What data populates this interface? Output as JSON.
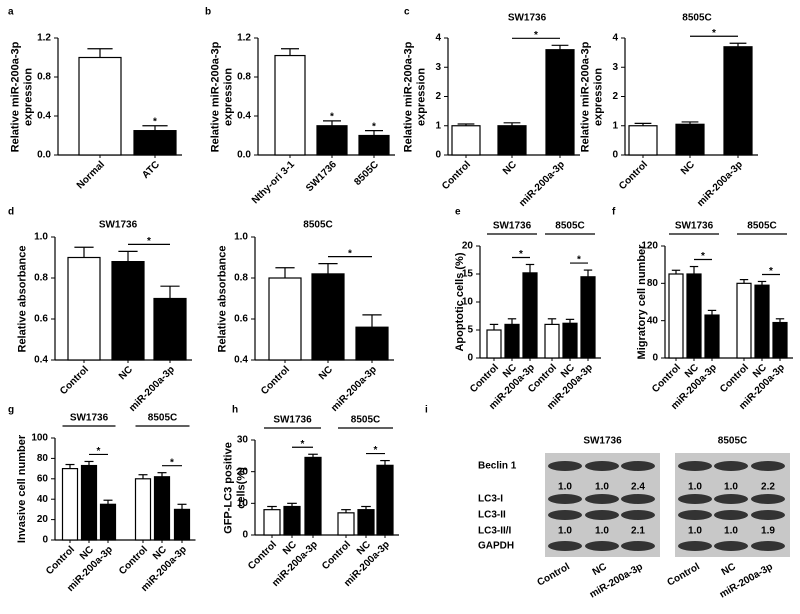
{
  "chart_data": [
    {
      "type": "bar",
      "panel": "a",
      "ylabel": "Relative miR-200a-3p expression",
      "categories": [
        "Normal",
        "ATC"
      ],
      "colors": [
        "#ffffff",
        "#000000"
      ],
      "values": [
        1.0,
        0.25
      ],
      "errors": [
        0.09,
        0.05
      ],
      "annotations": [
        null,
        "*"
      ],
      "bracket": false,
      "ylim": [
        0,
        1.2
      ],
      "yticks": [
        {
          "value": 0,
          "label": "0.0"
        },
        0.4,
        0.8,
        1.2
      ]
    },
    {
      "type": "bar",
      "panel": "b",
      "ylabel": "Relative miR-200a-3p expression",
      "categories": [
        "Nthy-ori 3-1",
        "SW1736",
        "8505C"
      ],
      "colors": [
        "#ffffff",
        "#000000",
        "#000000"
      ],
      "values": [
        1.02,
        0.3,
        0.2
      ],
      "errors": [
        0.07,
        0.05,
        0.05
      ],
      "annotations": [
        null,
        "*",
        "*"
      ],
      "bracket": false,
      "ylim": [
        0,
        1.2
      ],
      "yticks": [
        {
          "value": 0,
          "label": "0.0"
        },
        0.4,
        0.8,
        1.2
      ]
    },
    {
      "type": "bar",
      "panel": "c",
      "title": "SW1736",
      "ylabel": "Relative miR-200a-3p expression",
      "categories": [
        "Control",
        "NC",
        "miR-200a-3p"
      ],
      "colors": [
        "#ffffff",
        "#000000",
        "#000000"
      ],
      "values": [
        1.0,
        1.0,
        3.6
      ],
      "errors": [
        0.06,
        0.1,
        0.15
      ],
      "annotations": [
        null,
        null,
        "*"
      ],
      "bracket": true,
      "ylim": [
        0,
        4
      ],
      "yticks": [
        0,
        1,
        2,
        3,
        4
      ]
    },
    {
      "type": "bar",
      "title": "8505C",
      "ylabel": "Relative miR-200a-3p expression",
      "categories": [
        "Control",
        "NC",
        "miR-200a-3p"
      ],
      "colors": [
        "#ffffff",
        "#000000",
        "#000000"
      ],
      "values": [
        1.0,
        1.05,
        3.7
      ],
      "errors": [
        0.08,
        0.08,
        0.12
      ],
      "annotations": [
        null,
        null,
        "*"
      ],
      "bracket": true,
      "ylim": [
        0,
        4
      ],
      "yticks": [
        0,
        1,
        2,
        3,
        4
      ]
    },
    {
      "type": "bar",
      "panel": "d",
      "title": "SW1736",
      "ylabel": "Relative absorbance",
      "categories": [
        "Control",
        "NC",
        "miR-200a-3p"
      ],
      "colors": [
        "#ffffff",
        "#000000",
        "#000000"
      ],
      "values": [
        0.9,
        0.88,
        0.7
      ],
      "errors": [
        0.05,
        0.05,
        0.06
      ],
      "annotations": [
        null,
        null,
        "*"
      ],
      "bracket": true,
      "ylim": [
        0.4,
        1.0
      ],
      "yticks": [
        0.4,
        0.6,
        0.8,
        {
          "value": 1,
          "label": "1.0"
        }
      ]
    },
    {
      "type": "bar",
      "title": "8505C",
      "ylabel": "Relative absorbance",
      "categories": [
        "Control",
        "NC",
        "miR-200a-3p"
      ],
      "colors": [
        "#ffffff",
        "#000000",
        "#000000"
      ],
      "values": [
        0.8,
        0.82,
        0.56
      ],
      "errors": [
        0.05,
        0.05,
        0.06
      ],
      "annotations": [
        null,
        null,
        "*"
      ],
      "bracket": true,
      "ylim": [
        0.4,
        1.0
      ],
      "yticks": [
        0.4,
        0.6,
        0.8,
        {
          "value": 1,
          "label": "1.0"
        }
      ]
    },
    {
      "type": "bar",
      "panel": "e",
      "ylabel": "Apoptotic cells (%)",
      "categories": [
        "Control",
        "NC",
        "miR-200a-3p"
      ],
      "colors": [
        "#ffffff",
        "#000000",
        "#000000"
      ],
      "bracket": true,
      "ylim": [
        0,
        20
      ],
      "yticks": [
        0,
        5,
        10,
        15,
        20
      ],
      "groups": [
        {
          "name": "SW1736",
          "values": [
            5,
            6,
            15.2
          ],
          "errors": [
            1,
            1,
            1.5
          ],
          "annotations": [
            null,
            null,
            "*"
          ]
        },
        {
          "name": "8505C",
          "values": [
            6,
            6.2,
            14.5
          ],
          "errors": [
            1,
            0.7,
            1.2
          ],
          "annotations": [
            null,
            null,
            "*"
          ]
        }
      ]
    },
    {
      "type": "bar",
      "panel": "f",
      "ylabel": "Migratory cell number",
      "categories": [
        "Control",
        "NC",
        "miR-200a-3p"
      ],
      "colors": [
        "#ffffff",
        "#000000",
        "#000000"
      ],
      "bracket": true,
      "ylim": [
        0,
        120
      ],
      "yticks": [
        0,
        40,
        80,
        120
      ],
      "groups": [
        {
          "name": "SW1736",
          "values": [
            90,
            90,
            46
          ],
          "errors": [
            4,
            8,
            5
          ],
          "annotations": [
            null,
            null,
            "*"
          ]
        },
        {
          "name": "8505C",
          "values": [
            80,
            78,
            38
          ],
          "errors": [
            4,
            4,
            4
          ],
          "annotations": [
            null,
            null,
            "*"
          ]
        }
      ]
    },
    {
      "type": "bar",
      "panel": "g",
      "ylabel": "Invasive cell number",
      "categories": [
        "Control",
        "NC",
        "miR-200a-3p"
      ],
      "colors": [
        "#ffffff",
        "#000000",
        "#000000"
      ],
      "bracket": true,
      "ylim": [
        0,
        100
      ],
      "yticks": [
        0,
        20,
        40,
        60,
        80,
        100
      ],
      "groups": [
        {
          "name": "SW1736",
          "values": [
            70,
            73,
            35
          ],
          "errors": [
            4,
            4,
            4
          ],
          "annotations": [
            null,
            null,
            "*"
          ]
        },
        {
          "name": "8505C",
          "values": [
            60,
            62,
            30
          ],
          "errors": [
            4,
            4,
            5
          ],
          "annotations": [
            null,
            null,
            "*"
          ]
        }
      ]
    },
    {
      "type": "bar",
      "panel": "h",
      "ylabel": "GFP-LC3 positive cells(%)",
      "categories": [
        "Control",
        "NC",
        "miR-200a-3p"
      ],
      "colors": [
        "#ffffff",
        "#000000",
        "#000000"
      ],
      "bracket": true,
      "ylim": [
        0,
        30
      ],
      "yticks": [
        0,
        10,
        20,
        30
      ],
      "groups": [
        {
          "name": "SW1736",
          "values": [
            8,
            9,
            24.5
          ],
          "errors": [
            1,
            1,
            1
          ],
          "annotations": [
            null,
            null,
            "*"
          ]
        },
        {
          "name": "8505C",
          "values": [
            7,
            8,
            22
          ],
          "errors": [
            1,
            1,
            1.5
          ],
          "annotations": [
            null,
            null,
            "*"
          ]
        }
      ]
    },
    {
      "type": "blot",
      "panel": "i",
      "groups": [
        "SW1736",
        "8505C"
      ],
      "categories": [
        "Control",
        "NC",
        "miR-200a-3p"
      ],
      "rows": [
        {
          "label": "Beclin 1",
          "blot": true,
          "values": [
            1,
            1,
            2.4,
            1,
            1,
            2.2
          ],
          "value_labels": [
            "1.0",
            "1.0",
            "2.4",
            "1.0",
            "1.0",
            "2.2"
          ]
        },
        {
          "label": "LC3-I",
          "blot": true
        },
        {
          "label": "LC3-II",
          "blot": true
        },
        {
          "label": "LC3-II/I",
          "blot": false,
          "values": [
            1,
            1,
            2.1,
            1,
            1,
            1.9
          ],
          "value_labels": [
            "1.0",
            "1.0",
            "2.1",
            "1.0",
            "1.0",
            "1.9"
          ]
        },
        {
          "label": "GAPDH",
          "blot": true
        }
      ]
    }
  ]
}
